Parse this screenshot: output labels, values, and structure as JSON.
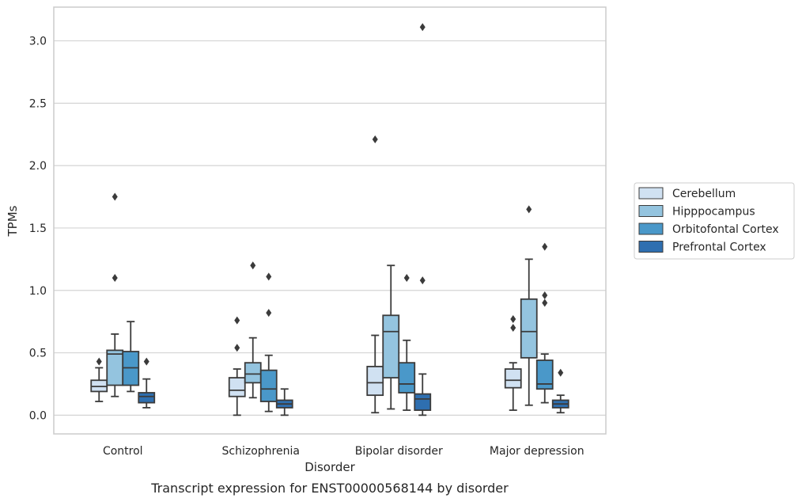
{
  "caption": "Transcript expression for ENST00000568144 by disorder",
  "chart_data": {
    "type": "box",
    "xlabel": "Disorder",
    "ylabel": "TPMs",
    "ylim": [
      -0.15,
      3.27
    ],
    "yticks": [
      "0.0",
      "0.5",
      "1.0",
      "1.5",
      "2.0",
      "2.5",
      "3.0"
    ],
    "grid": "horizontal",
    "legend_position": "right",
    "categories": [
      "Control",
      "Schizophrenia",
      "Bipolar disorder",
      "Major depression"
    ],
    "series": [
      {
        "name": "Cerebellum",
        "color": "#d0e1f2",
        "boxes": [
          {
            "whislo": 0.11,
            "q1": 0.19,
            "med": 0.23,
            "q3": 0.28,
            "whishi": 0.38,
            "fliers": [
              0.43
            ]
          },
          {
            "whislo": 0.0,
            "q1": 0.15,
            "med": 0.2,
            "q3": 0.3,
            "whishi": 0.37,
            "fliers": [
              0.54,
              0.76
            ]
          },
          {
            "whislo": 0.02,
            "q1": 0.16,
            "med": 0.26,
            "q3": 0.39,
            "whishi": 0.64,
            "fliers": [
              2.21
            ]
          },
          {
            "whislo": 0.04,
            "q1": 0.22,
            "med": 0.28,
            "q3": 0.37,
            "whishi": 0.42,
            "fliers": [
              0.7,
              0.77
            ]
          }
        ]
      },
      {
        "name": "Hipppocampus",
        "color": "#94c4df",
        "boxes": [
          {
            "whislo": 0.15,
            "q1": 0.24,
            "med": 0.49,
            "q3": 0.52,
            "whishi": 0.65,
            "fliers": [
              1.1,
              1.75
            ]
          },
          {
            "whislo": 0.14,
            "q1": 0.26,
            "med": 0.33,
            "q3": 0.42,
            "whishi": 0.62,
            "fliers": [
              1.2
            ]
          },
          {
            "whislo": 0.05,
            "q1": 0.3,
            "med": 0.67,
            "q3": 0.8,
            "whishi": 1.2,
            "fliers": []
          },
          {
            "whislo": 0.08,
            "q1": 0.46,
            "med": 0.67,
            "q3": 0.93,
            "whishi": 1.25,
            "fliers": [
              1.65
            ]
          }
        ]
      },
      {
        "name": "Orbitofontal Cortex",
        "color": "#4a98c9",
        "boxes": [
          {
            "whislo": 0.19,
            "q1": 0.24,
            "med": 0.38,
            "q3": 0.51,
            "whishi": 0.75,
            "fliers": []
          },
          {
            "whislo": 0.03,
            "q1": 0.11,
            "med": 0.21,
            "q3": 0.36,
            "whishi": 0.48,
            "fliers": [
              0.82,
              1.11
            ]
          },
          {
            "whislo": 0.04,
            "q1": 0.18,
            "med": 0.25,
            "q3": 0.42,
            "whishi": 0.6,
            "fliers": [
              1.1
            ]
          },
          {
            "whislo": 0.1,
            "q1": 0.21,
            "med": 0.25,
            "q3": 0.44,
            "whishi": 0.49,
            "fliers": [
              0.9,
              0.96,
              1.35
            ]
          }
        ]
      },
      {
        "name": "Prefrontal Cortex",
        "color": "#2e6fb0",
        "boxes": [
          {
            "whislo": 0.06,
            "q1": 0.1,
            "med": 0.15,
            "q3": 0.18,
            "whishi": 0.29,
            "fliers": [
              0.43
            ]
          },
          {
            "whislo": 0.0,
            "q1": 0.06,
            "med": 0.09,
            "q3": 0.12,
            "whishi": 0.21,
            "fliers": []
          },
          {
            "whislo": 0.0,
            "q1": 0.04,
            "med": 0.13,
            "q3": 0.17,
            "whishi": 0.33,
            "fliers": [
              1.08,
              3.11
            ]
          },
          {
            "whislo": 0.02,
            "q1": 0.06,
            "med": 0.09,
            "q3": 0.12,
            "whishi": 0.16,
            "fliers": [
              0.34
            ]
          }
        ]
      }
    ]
  }
}
